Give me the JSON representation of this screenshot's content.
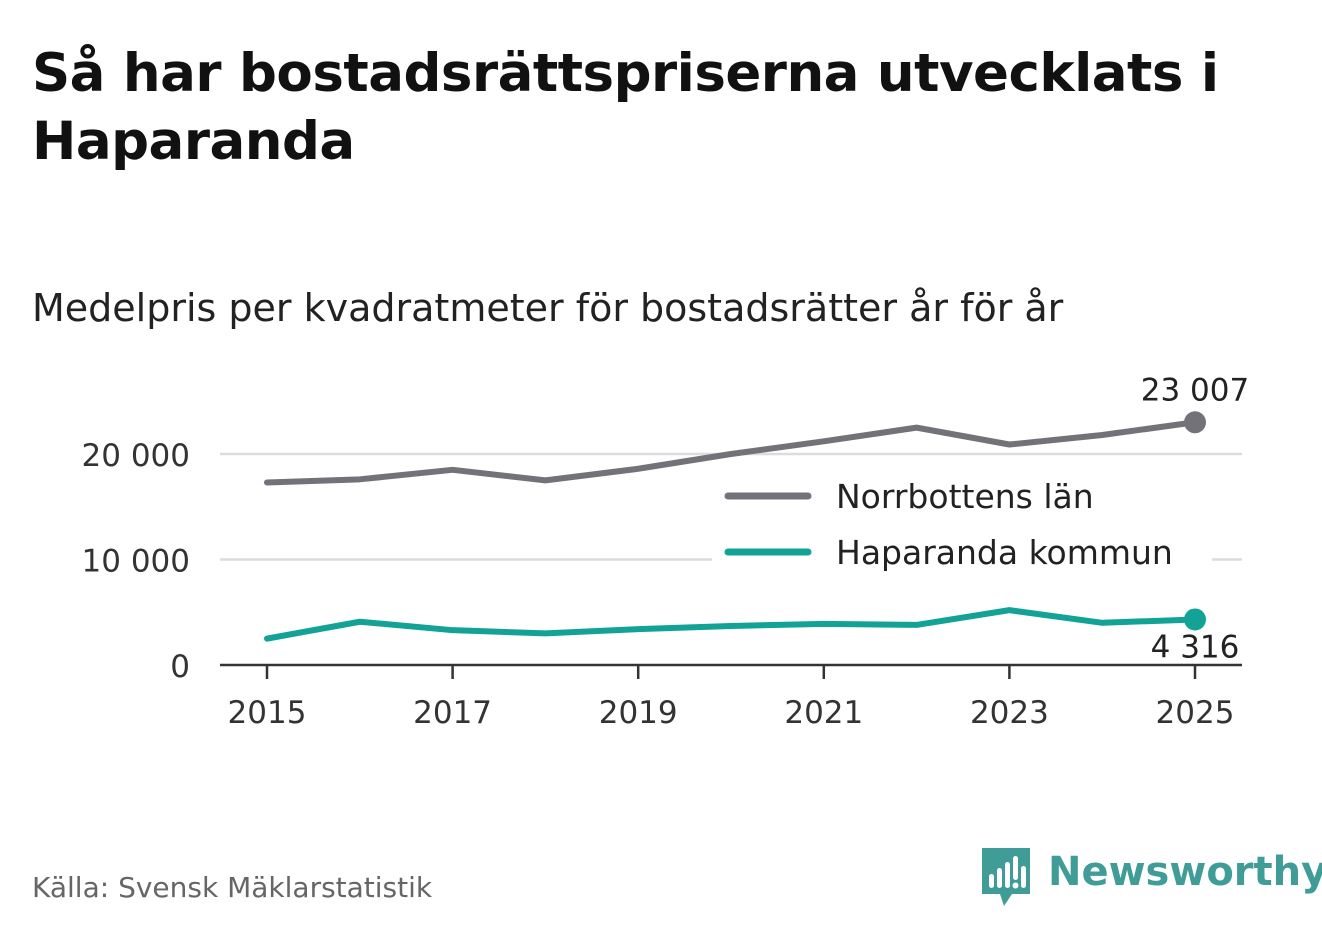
{
  "header": {
    "title": "Så har bostadsrättspriserna utvecklats i Haparanda",
    "subtitle": "Medelpris per kvadratmeter för bostadsrätter år för år"
  },
  "footer": {
    "source": "Källa: Svensk Mäklarstatistik",
    "brand": "Newsworthy",
    "brand_color": "#3f9c96"
  },
  "chart_data": {
    "type": "line",
    "title": "Så har bostadsrättspriserna utvecklats i Haparanda",
    "subtitle": "Medelpris per kvadratmeter för bostadsrätter år för år",
    "xlabel": "",
    "ylabel": "",
    "x": [
      2015,
      2016,
      2017,
      2018,
      2019,
      2020,
      2021,
      2022,
      2023,
      2024,
      2025
    ],
    "xticks": [
      2015,
      2017,
      2019,
      2021,
      2023,
      2025
    ],
    "xtick_labels": [
      "2015",
      "2017",
      "2019",
      "2021",
      "2023",
      "2025"
    ],
    "yticks": [
      0,
      10000,
      20000
    ],
    "ytick_labels": [
      "0",
      "10 000",
      "20 000"
    ],
    "ylim": [
      0,
      24000
    ],
    "grid": true,
    "legend_position": "center-right",
    "series": [
      {
        "name": "Norrbottens län",
        "color": "#737278",
        "values": [
          17300,
          17600,
          18500,
          17500,
          18600,
          20000,
          21200,
          22500,
          20900,
          21800,
          23007
        ],
        "end_label": "23 007"
      },
      {
        "name": "Haparanda kommun",
        "color": "#12a296",
        "values": [
          2500,
          4100,
          3300,
          3000,
          3400,
          3700,
          3900,
          3800,
          5200,
          4000,
          4316
        ],
        "end_label": "4 316"
      }
    ]
  }
}
